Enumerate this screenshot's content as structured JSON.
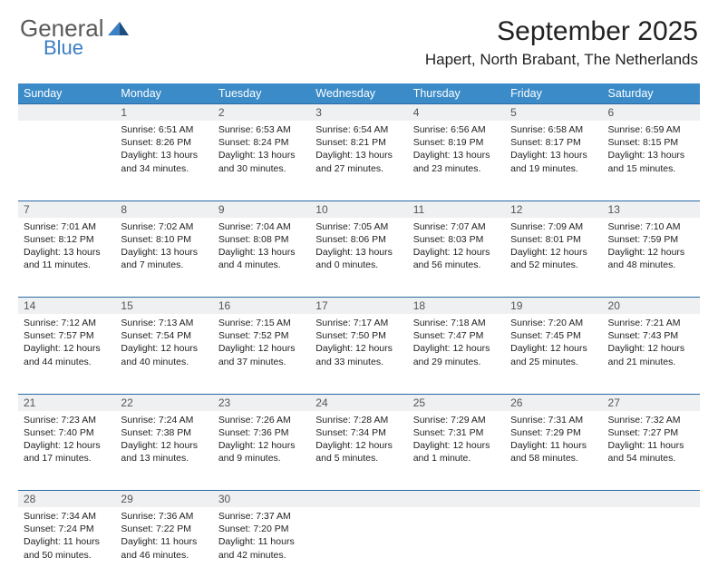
{
  "logo": {
    "word1": "General",
    "word2": "Blue"
  },
  "title": "September 2025",
  "location": "Hapert, North Brabant, The Netherlands",
  "colors": {
    "header_bg": "#3b8bc8",
    "header_text": "#ffffff",
    "daynum_bg": "#eef0f2",
    "daynum_border": "#2a6aa3",
    "logo_gray": "#5a5a5a",
    "logo_blue": "#3b7fc4"
  },
  "weekdays": [
    "Sunday",
    "Monday",
    "Tuesday",
    "Wednesday",
    "Thursday",
    "Friday",
    "Saturday"
  ],
  "weeks": [
    {
      "nums": [
        "",
        "1",
        "2",
        "3",
        "4",
        "5",
        "6"
      ],
      "cells": [
        null,
        {
          "sunrise": "6:51 AM",
          "sunset": "8:26 PM",
          "daylight": "13 hours and 34 minutes."
        },
        {
          "sunrise": "6:53 AM",
          "sunset": "8:24 PM",
          "daylight": "13 hours and 30 minutes."
        },
        {
          "sunrise": "6:54 AM",
          "sunset": "8:21 PM",
          "daylight": "13 hours and 27 minutes."
        },
        {
          "sunrise": "6:56 AM",
          "sunset": "8:19 PM",
          "daylight": "13 hours and 23 minutes."
        },
        {
          "sunrise": "6:58 AM",
          "sunset": "8:17 PM",
          "daylight": "13 hours and 19 minutes."
        },
        {
          "sunrise": "6:59 AM",
          "sunset": "8:15 PM",
          "daylight": "13 hours and 15 minutes."
        }
      ]
    },
    {
      "nums": [
        "7",
        "8",
        "9",
        "10",
        "11",
        "12",
        "13"
      ],
      "cells": [
        {
          "sunrise": "7:01 AM",
          "sunset": "8:12 PM",
          "daylight": "13 hours and 11 minutes."
        },
        {
          "sunrise": "7:02 AM",
          "sunset": "8:10 PM",
          "daylight": "13 hours and 7 minutes."
        },
        {
          "sunrise": "7:04 AM",
          "sunset": "8:08 PM",
          "daylight": "13 hours and 4 minutes."
        },
        {
          "sunrise": "7:05 AM",
          "sunset": "8:06 PM",
          "daylight": "13 hours and 0 minutes."
        },
        {
          "sunrise": "7:07 AM",
          "sunset": "8:03 PM",
          "daylight": "12 hours and 56 minutes."
        },
        {
          "sunrise": "7:09 AM",
          "sunset": "8:01 PM",
          "daylight": "12 hours and 52 minutes."
        },
        {
          "sunrise": "7:10 AM",
          "sunset": "7:59 PM",
          "daylight": "12 hours and 48 minutes."
        }
      ]
    },
    {
      "nums": [
        "14",
        "15",
        "16",
        "17",
        "18",
        "19",
        "20"
      ],
      "cells": [
        {
          "sunrise": "7:12 AM",
          "sunset": "7:57 PM",
          "daylight": "12 hours and 44 minutes."
        },
        {
          "sunrise": "7:13 AM",
          "sunset": "7:54 PM",
          "daylight": "12 hours and 40 minutes."
        },
        {
          "sunrise": "7:15 AM",
          "sunset": "7:52 PM",
          "daylight": "12 hours and 37 minutes."
        },
        {
          "sunrise": "7:17 AM",
          "sunset": "7:50 PM",
          "daylight": "12 hours and 33 minutes."
        },
        {
          "sunrise": "7:18 AM",
          "sunset": "7:47 PM",
          "daylight": "12 hours and 29 minutes."
        },
        {
          "sunrise": "7:20 AM",
          "sunset": "7:45 PM",
          "daylight": "12 hours and 25 minutes."
        },
        {
          "sunrise": "7:21 AM",
          "sunset": "7:43 PM",
          "daylight": "12 hours and 21 minutes."
        }
      ]
    },
    {
      "nums": [
        "21",
        "22",
        "23",
        "24",
        "25",
        "26",
        "27"
      ],
      "cells": [
        {
          "sunrise": "7:23 AM",
          "sunset": "7:40 PM",
          "daylight": "12 hours and 17 minutes."
        },
        {
          "sunrise": "7:24 AM",
          "sunset": "7:38 PM",
          "daylight": "12 hours and 13 minutes."
        },
        {
          "sunrise": "7:26 AM",
          "sunset": "7:36 PM",
          "daylight": "12 hours and 9 minutes."
        },
        {
          "sunrise": "7:28 AM",
          "sunset": "7:34 PM",
          "daylight": "12 hours and 5 minutes."
        },
        {
          "sunrise": "7:29 AM",
          "sunset": "7:31 PM",
          "daylight": "12 hours and 1 minute."
        },
        {
          "sunrise": "7:31 AM",
          "sunset": "7:29 PM",
          "daylight": "11 hours and 58 minutes."
        },
        {
          "sunrise": "7:32 AM",
          "sunset": "7:27 PM",
          "daylight": "11 hours and 54 minutes."
        }
      ]
    },
    {
      "nums": [
        "28",
        "29",
        "30",
        "",
        "",
        "",
        ""
      ],
      "cells": [
        {
          "sunrise": "7:34 AM",
          "sunset": "7:24 PM",
          "daylight": "11 hours and 50 minutes."
        },
        {
          "sunrise": "7:36 AM",
          "sunset": "7:22 PM",
          "daylight": "11 hours and 46 minutes."
        },
        {
          "sunrise": "7:37 AM",
          "sunset": "7:20 PM",
          "daylight": "11 hours and 42 minutes."
        },
        null,
        null,
        null,
        null
      ]
    }
  ],
  "labels": {
    "sunrise": "Sunrise:",
    "sunset": "Sunset:",
    "daylight": "Daylight:"
  }
}
